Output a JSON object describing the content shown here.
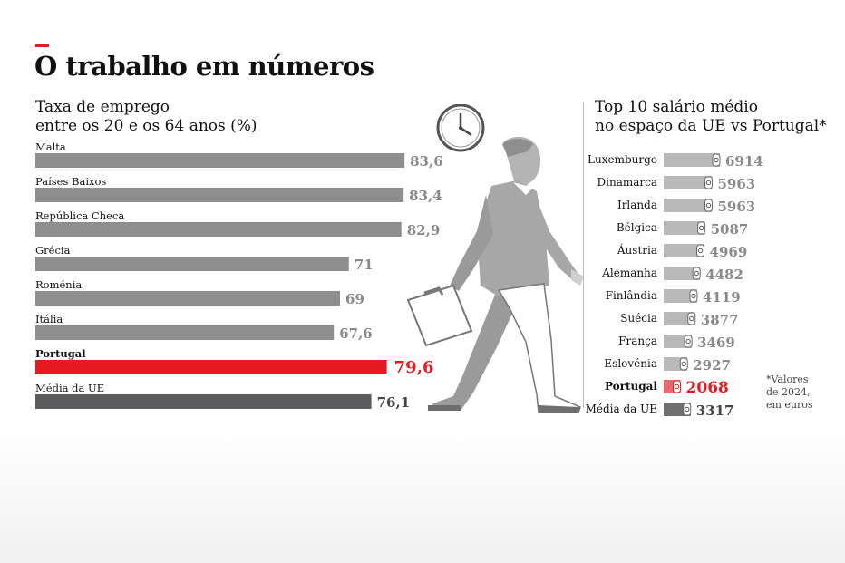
{
  "title": "O trabalho em números",
  "colors": {
    "accent": "#e41b23",
    "bar_gray": "#8e8e8e",
    "bar_dark": "#5c5c5e",
    "label_gray": "#8a8a8a",
    "wage_bar": "#b9b9b9",
    "coin_fill": "#ffffff"
  },
  "footnote": [
    "*Valores",
    "de 2024,",
    "em euros"
  ],
  "chart_data": [
    {
      "type": "bar",
      "orientation": "horizontal",
      "title_lines": [
        "Taxa de emprego",
        "entre os 20 e os 64 anos (%)"
      ],
      "categories": [
        "Malta",
        "Países Baixos",
        "República Checa",
        "Grécia",
        "Roménia",
        "Itália",
        "Portugal",
        "Média da UE"
      ],
      "values": [
        83.6,
        83.4,
        82.9,
        71,
        69,
        67.6,
        79.6,
        76.1
      ],
      "value_labels": [
        "83,6",
        "83,4",
        "82,9",
        "71",
        "69",
        "67,6",
        "79,6",
        "76,1"
      ],
      "highlight": {
        "Portugal": "accent",
        "Média da UE": "dark"
      },
      "xlim": [
        0,
        100
      ],
      "grid": false
    },
    {
      "type": "bar",
      "orientation": "horizontal",
      "title_lines": [
        "Top 10 salário médio",
        "no espaço da UE vs Portugal*"
      ],
      "categories": [
        "Luxemburgo",
        "Dinamarca",
        "Irlanda",
        "Bélgica",
        "Áustria",
        "Alemanha",
        "Finlândia",
        "Suécia",
        "França",
        "Eslovénia",
        "Portugal",
        "Média da UE"
      ],
      "values": [
        6914,
        5963,
        5963,
        5087,
        4969,
        4482,
        4119,
        3877,
        3469,
        2927,
        2068,
        3317
      ],
      "value_labels": [
        "6914",
        "5963",
        "5963",
        "5087",
        "4969",
        "4482",
        "4119",
        "3877",
        "3469",
        "2927",
        "2068",
        "3317"
      ],
      "highlight": {
        "Portugal": "accent",
        "Média da UE": "dark"
      },
      "grid": false
    }
  ]
}
